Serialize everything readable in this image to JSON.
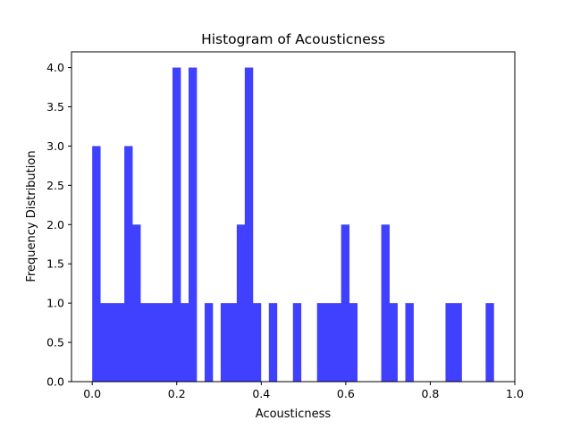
{
  "chart_data": {
    "type": "bar",
    "title": "Histogram of Acousticness",
    "xlabel": "Acousticness",
    "ylabel": "Frequency Distribution",
    "xlim": [
      -0.049,
      1.0
    ],
    "ylim": [
      0,
      4.2
    ],
    "bin_range": [
      0.0,
      0.95
    ],
    "bin_count": 50,
    "bar_color": "#4040ff",
    "grid": false,
    "legend": "none",
    "x_ticks": [
      "0.0",
      "0.2",
      "0.4",
      "0.6",
      "0.8",
      "1.0"
    ],
    "y_ticks": [
      "0.0",
      "0.5",
      "1.0",
      "1.5",
      "2.0",
      "2.5",
      "3.0",
      "3.5",
      "4.0"
    ],
    "values": [
      3,
      1,
      1,
      1,
      3,
      2,
      1,
      1,
      1,
      1,
      4,
      1,
      4,
      0,
      1,
      0,
      1,
      1,
      2,
      4,
      1,
      0,
      1,
      0,
      0,
      1,
      0,
      0,
      1,
      1,
      1,
      2,
      1,
      0,
      0,
      0,
      2,
      1,
      0,
      1,
      0,
      0,
      0,
      0,
      1,
      1,
      0,
      0,
      0,
      1
    ]
  }
}
